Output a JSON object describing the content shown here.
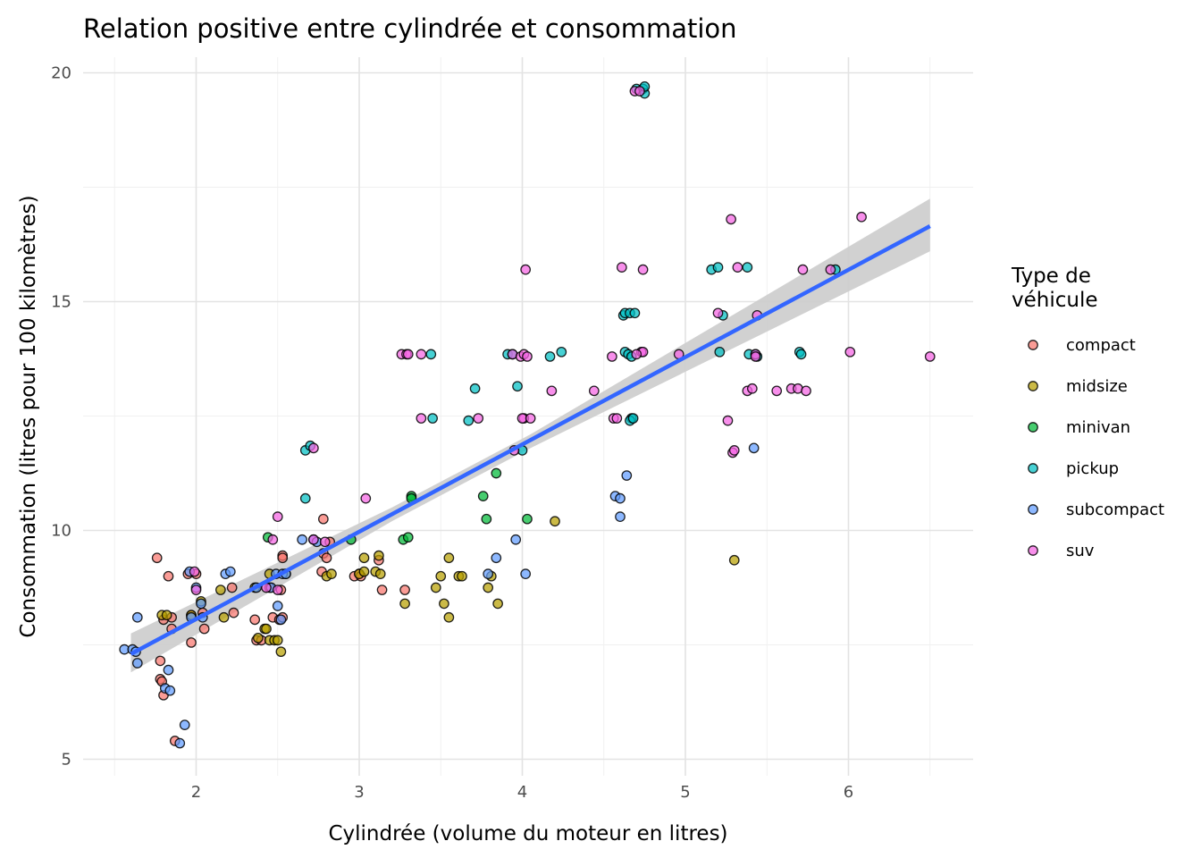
{
  "chart_data": {
    "type": "scatter",
    "title": "Relation positive entre cylindrée et consommation",
    "xlabel": "Cylindrée (volume du moteur en litres)",
    "ylabel": "Consommation (litres pour 100 kilomètres)",
    "xlim": [
      1.4,
      6.7
    ],
    "ylim": [
      4.5,
      20.5
    ],
    "x_ticks": [
      2,
      3,
      4,
      5,
      6
    ],
    "y_ticks": [
      5,
      10,
      15,
      20
    ],
    "grid": true,
    "legend": {
      "title": "Type de\nvéhicule",
      "title_lines": [
        "Type de",
        "véhicule"
      ],
      "position": "right"
    },
    "series": [
      {
        "name": "compact",
        "color": "#F8766D",
        "points": [
          [
            1.76,
            9.4
          ],
          [
            1.83,
            9.0
          ],
          [
            1.95,
            9.05
          ],
          [
            2.0,
            9.05
          ],
          [
            1.8,
            8.05
          ],
          [
            1.85,
            8.1
          ],
          [
            1.97,
            8.15
          ],
          [
            2.04,
            8.2
          ],
          [
            1.85,
            7.85
          ],
          [
            2.05,
            7.85
          ],
          [
            1.97,
            7.55
          ],
          [
            1.78,
            7.15
          ],
          [
            1.78,
            6.75
          ],
          [
            1.79,
            6.7
          ],
          [
            1.8,
            6.4
          ],
          [
            1.87,
            5.4
          ],
          [
            2.22,
            8.75
          ],
          [
            2.23,
            8.2
          ],
          [
            2.36,
            8.05
          ],
          [
            2.37,
            7.6
          ],
          [
            2.4,
            7.6
          ],
          [
            2.47,
            8.1
          ],
          [
            2.51,
            8.05
          ],
          [
            2.53,
            8.1
          ],
          [
            2.45,
            8.75
          ],
          [
            2.52,
            8.7
          ],
          [
            2.53,
            9.45
          ],
          [
            2.53,
            9.4
          ],
          [
            2.78,
            10.25
          ],
          [
            2.77,
            9.1
          ],
          [
            2.78,
            9.5
          ],
          [
            2.82,
            9.75
          ],
          [
            2.97,
            9.0
          ],
          [
            3.0,
            9.05
          ],
          [
            3.01,
            9.0
          ],
          [
            3.12,
            9.35
          ],
          [
            3.14,
            8.7
          ],
          [
            3.28,
            8.7
          ],
          [
            2.8,
            9.4
          ]
        ]
      },
      {
        "name": "midsize",
        "color": "#B79F00",
        "points": [
          [
            1.79,
            8.15
          ],
          [
            1.82,
            8.15
          ],
          [
            1.97,
            8.15
          ],
          [
            2.03,
            8.45
          ],
          [
            2.15,
            8.7
          ],
          [
            2.17,
            8.1
          ],
          [
            2.36,
            8.75
          ],
          [
            2.38,
            7.65
          ],
          [
            2.42,
            7.85
          ],
          [
            2.43,
            7.85
          ],
          [
            2.45,
            7.6
          ],
          [
            2.48,
            7.6
          ],
          [
            2.5,
            7.6
          ],
          [
            2.52,
            7.35
          ],
          [
            2.45,
            9.05
          ],
          [
            2.55,
            9.05
          ],
          [
            2.8,
            9.0
          ],
          [
            2.83,
            9.05
          ],
          [
            3.0,
            9.05
          ],
          [
            3.03,
            9.1
          ],
          [
            3.03,
            9.4
          ],
          [
            3.1,
            9.1
          ],
          [
            3.13,
            9.05
          ],
          [
            3.12,
            9.45
          ],
          [
            3.28,
            8.4
          ],
          [
            3.47,
            8.75
          ],
          [
            3.5,
            9.0
          ],
          [
            3.52,
            8.4
          ],
          [
            3.55,
            9.4
          ],
          [
            3.55,
            8.1
          ],
          [
            3.61,
            9.0
          ],
          [
            3.63,
            9.0
          ],
          [
            3.79,
            8.75
          ],
          [
            3.81,
            9.0
          ],
          [
            3.85,
            8.4
          ],
          [
            4.2,
            10.2
          ],
          [
            5.3,
            9.35
          ]
        ]
      },
      {
        "name": "minivan",
        "color": "#00BA38",
        "points": [
          [
            2.44,
            9.85
          ],
          [
            2.95,
            9.8
          ],
          [
            3.27,
            9.8
          ],
          [
            3.3,
            9.85
          ],
          [
            3.32,
            10.75
          ],
          [
            3.32,
            10.7
          ],
          [
            3.76,
            10.75
          ],
          [
            3.78,
            10.25
          ],
          [
            3.84,
            11.25
          ],
          [
            4.03,
            10.25
          ]
        ]
      },
      {
        "name": "pickup",
        "color": "#00BFC4",
        "points": [
          [
            2.67,
            10.7
          ],
          [
            2.67,
            11.75
          ],
          [
            2.7,
            11.85
          ],
          [
            3.44,
            13.85
          ],
          [
            3.45,
            12.45
          ],
          [
            3.67,
            12.4
          ],
          [
            3.71,
            13.1
          ],
          [
            3.91,
            13.85
          ],
          [
            3.94,
            13.85
          ],
          [
            3.97,
            13.15
          ],
          [
            4.0,
            11.75
          ],
          [
            4.17,
            13.8
          ],
          [
            4.24,
            13.9
          ],
          [
            4.62,
            14.7
          ],
          [
            4.63,
            14.75
          ],
          [
            4.66,
            14.75
          ],
          [
            4.69,
            14.75
          ],
          [
            4.63,
            13.9
          ],
          [
            4.65,
            13.85
          ],
          [
            4.67,
            13.8
          ],
          [
            4.67,
            12.45
          ],
          [
            4.66,
            12.4
          ],
          [
            4.68,
            12.45
          ],
          [
            4.7,
            19.65
          ],
          [
            4.74,
            19.65
          ],
          [
            4.75,
            19.55
          ],
          [
            4.75,
            19.7
          ],
          [
            5.16,
            15.7
          ],
          [
            5.2,
            15.75
          ],
          [
            5.23,
            14.7
          ],
          [
            5.21,
            13.9
          ],
          [
            5.38,
            15.75
          ],
          [
            5.39,
            13.85
          ],
          [
            5.43,
            13.85
          ],
          [
            5.44,
            13.8
          ],
          [
            5.7,
            13.9
          ],
          [
            5.71,
            13.85
          ],
          [
            5.92,
            15.7
          ]
        ]
      },
      {
        "name": "subcompact",
        "color": "#619CFF",
        "points": [
          [
            1.56,
            7.4
          ],
          [
            1.61,
            7.4
          ],
          [
            1.63,
            7.35
          ],
          [
            1.64,
            7.1
          ],
          [
            1.64,
            8.1
          ],
          [
            1.83,
            6.95
          ],
          [
            1.81,
            6.55
          ],
          [
            1.84,
            6.5
          ],
          [
            1.93,
            5.75
          ],
          [
            1.9,
            5.35
          ],
          [
            1.96,
            9.1
          ],
          [
            2.0,
            8.75
          ],
          [
            1.97,
            8.1
          ],
          [
            2.03,
            8.4
          ],
          [
            2.04,
            8.1
          ],
          [
            2.18,
            9.05
          ],
          [
            2.21,
            9.1
          ],
          [
            2.37,
            8.75
          ],
          [
            2.46,
            8.75
          ],
          [
            2.49,
            9.05
          ],
          [
            2.5,
            8.35
          ],
          [
            2.52,
            8.05
          ],
          [
            2.53,
            9.05
          ],
          [
            2.55,
            9.05
          ],
          [
            2.65,
            9.8
          ],
          [
            2.72,
            9.8
          ],
          [
            2.74,
            9.75
          ],
          [
            3.79,
            9.05
          ],
          [
            3.84,
            9.4
          ],
          [
            3.96,
            9.8
          ],
          [
            4.02,
            9.05
          ],
          [
            4.57,
            10.75
          ],
          [
            4.6,
            10.7
          ],
          [
            4.6,
            10.3
          ],
          [
            4.64,
            11.2
          ],
          [
            5.42,
            11.8
          ]
        ]
      },
      {
        "name": "suv",
        "color": "#F564E3",
        "points": [
          [
            2.0,
            8.7
          ],
          [
            1.99,
            9.1
          ],
          [
            2.43,
            8.75
          ],
          [
            2.47,
            9.8
          ],
          [
            2.5,
            8.7
          ],
          [
            2.5,
            10.3
          ],
          [
            2.72,
            11.8
          ],
          [
            2.72,
            9.8
          ],
          [
            2.79,
            9.75
          ],
          [
            3.04,
            10.7
          ],
          [
            3.26,
            13.85
          ],
          [
            3.29,
            13.85
          ],
          [
            3.3,
            13.85
          ],
          [
            3.38,
            13.85
          ],
          [
            3.38,
            12.45
          ],
          [
            3.73,
            12.45
          ],
          [
            3.95,
            11.75
          ],
          [
            3.94,
            13.85
          ],
          [
            3.99,
            13.8
          ],
          [
            4.01,
            13.85
          ],
          [
            4.03,
            13.8
          ],
          [
            4.01,
            12.45
          ],
          [
            4.0,
            12.45
          ],
          [
            4.05,
            12.45
          ],
          [
            4.02,
            15.7
          ],
          [
            4.18,
            13.05
          ],
          [
            4.44,
            13.05
          ],
          [
            4.55,
            13.8
          ],
          [
            4.56,
            12.45
          ],
          [
            4.58,
            12.45
          ],
          [
            4.61,
            15.75
          ],
          [
            4.69,
            19.6
          ],
          [
            4.72,
            19.6
          ],
          [
            4.73,
            13.9
          ],
          [
            4.74,
            13.9
          ],
          [
            4.7,
            13.85
          ],
          [
            4.74,
            15.7
          ],
          [
            4.96,
            13.85
          ],
          [
            5.2,
            14.75
          ],
          [
            5.26,
            12.4
          ],
          [
            5.28,
            16.8
          ],
          [
            5.29,
            11.7
          ],
          [
            5.3,
            11.75
          ],
          [
            5.32,
            15.75
          ],
          [
            5.38,
            13.05
          ],
          [
            5.41,
            13.1
          ],
          [
            5.43,
            13.85
          ],
          [
            5.43,
            13.8
          ],
          [
            5.44,
            14.7
          ],
          [
            5.56,
            13.05
          ],
          [
            5.65,
            13.1
          ],
          [
            5.69,
            13.1
          ],
          [
            5.72,
            15.7
          ],
          [
            5.74,
            13.05
          ],
          [
            5.89,
            15.7
          ],
          [
            6.01,
            13.9
          ],
          [
            6.08,
            16.85
          ],
          [
            6.5,
            13.8
          ]
        ]
      }
    ],
    "trend": {
      "method": "linear",
      "color": "#3366FF",
      "band_color": "#cccccc",
      "line": [
        [
          1.6,
          7.3
        ],
        [
          6.5,
          16.65
        ]
      ],
      "band_upper": [
        [
          1.6,
          7.75
        ],
        [
          3.2,
          10.5
        ],
        [
          4.05,
          12.1
        ],
        [
          6.5,
          17.25
        ]
      ],
      "band_lower": [
        [
          1.6,
          6.9
        ],
        [
          3.2,
          10.2
        ],
        [
          4.05,
          11.8
        ],
        [
          6.5,
          16.1
        ]
      ]
    }
  }
}
